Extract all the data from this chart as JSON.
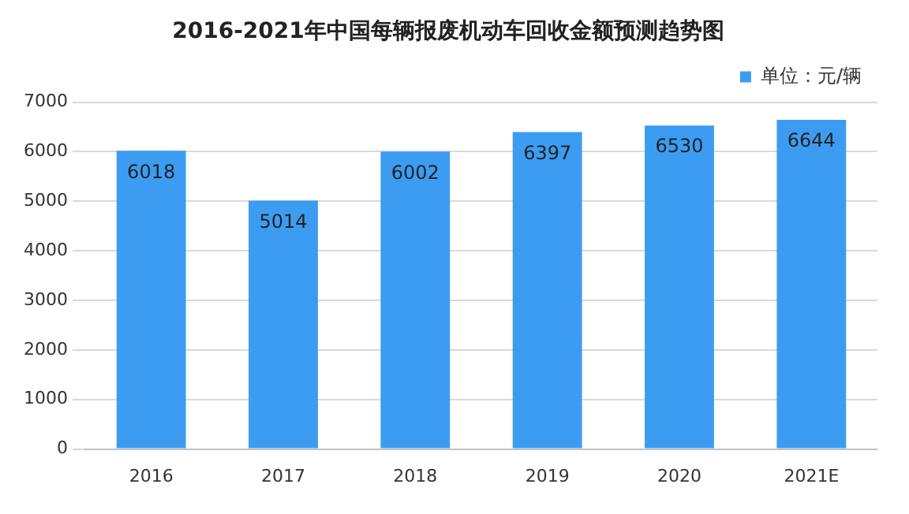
{
  "chart_data": {
    "type": "bar",
    "title": "2016-2021年中国每辆报废机动车回收金额预测趋势图",
    "categories": [
      "2016",
      "2017",
      "2018",
      "2019",
      "2020",
      "2021E"
    ],
    "series": [
      {
        "name": "单位：元/辆",
        "color": "#3c9cf2",
        "values": [
          6018,
          5014,
          6002,
          6397,
          6530,
          6644
        ]
      }
    ],
    "ylim": [
      0,
      7000
    ],
    "yticks": [
      0,
      1000,
      2000,
      3000,
      4000,
      5000,
      6000,
      7000
    ],
    "grid": "y",
    "legend": "top right",
    "data_labels": true
  }
}
